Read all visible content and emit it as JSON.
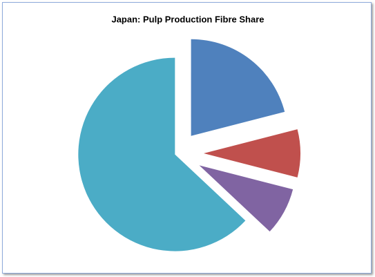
{
  "chart_data": {
    "type": "pie",
    "title": "Japan: Pulp Production Fibre Share",
    "values": [
      21,
      8,
      8,
      63
    ],
    "colors": [
      "#4f81bd",
      "#c0504d",
      "#8064a2",
      "#4bacc6"
    ],
    "exploded": true
  }
}
